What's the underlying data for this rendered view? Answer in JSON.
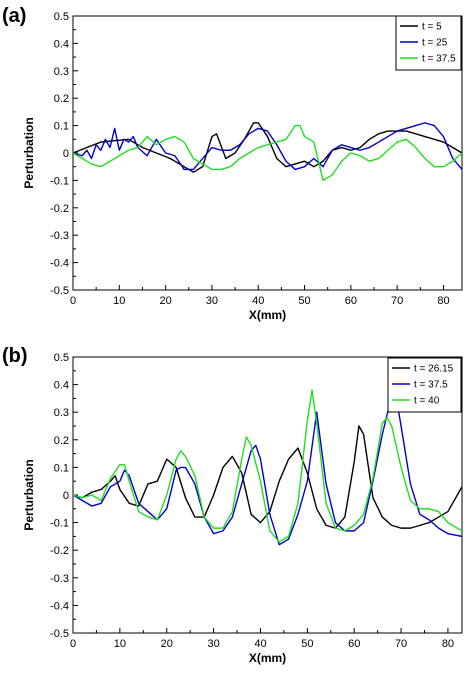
{
  "chart_data": [
    {
      "panel_label": "(a)",
      "type": "line",
      "xlabel": "X(mm)",
      "ylabel": "Perturbation",
      "xlim": [
        0,
        84
      ],
      "ylim": [
        -0.5,
        0.5
      ],
      "xticks": [
        0,
        10,
        20,
        30,
        40,
        50,
        60,
        70,
        80
      ],
      "yticks": [
        -0.5,
        -0.4,
        -0.3,
        -0.2,
        -0.1,
        0,
        0.1,
        0.2,
        0.3,
        0.4,
        0.5
      ],
      "ytick_labels": [
        "-0.5",
        "-0.4",
        "-0.3",
        "-0.2",
        "-0.1",
        "0",
        "0.1",
        "0.2",
        "0.3",
        "0.4",
        "0.5"
      ],
      "legend_position": "top-right",
      "series": [
        {
          "name": "t = 5",
          "color": "#000000",
          "x": [
            0,
            3,
            6,
            9,
            12,
            15,
            18,
            21,
            24,
            26,
            28,
            30,
            31,
            33,
            35,
            37,
            39,
            40,
            42,
            44,
            46,
            48,
            50,
            52,
            54,
            56,
            58,
            60,
            62,
            64,
            66,
            68,
            70,
            72,
            74,
            76,
            78,
            80,
            82,
            84
          ],
          "y": [
            0,
            0.02,
            0.04,
            0.045,
            0.05,
            0.02,
            0,
            -0.02,
            -0.05,
            -0.07,
            -0.05,
            0.06,
            0.07,
            -0.02,
            0,
            0.05,
            0.11,
            0.11,
            0.06,
            -0.02,
            -0.05,
            -0.04,
            -0.03,
            -0.05,
            -0.03,
            0.01,
            0.02,
            0.01,
            0.02,
            0.05,
            0.07,
            0.08,
            0.08,
            0.08,
            0.07,
            0.06,
            0.05,
            0.04,
            0.02,
            0
          ]
        },
        {
          "name": "t = 25",
          "color": "#0000cc",
          "x": [
            0,
            2,
            3,
            4,
            5,
            6,
            7,
            8,
            9,
            10,
            11,
            12,
            13,
            14,
            16,
            18,
            20,
            22,
            24,
            26,
            28,
            30,
            32,
            34,
            36,
            38,
            40,
            42,
            44,
            46,
            48,
            50,
            52,
            54,
            56,
            58,
            60,
            62,
            64,
            66,
            68,
            70,
            72,
            74,
            76,
            78,
            80,
            82,
            84
          ],
          "y": [
            0,
            -0.01,
            0.01,
            -0.02,
            0.03,
            0.01,
            0.05,
            0.02,
            0.09,
            0.01,
            0.05,
            0.04,
            0.06,
            0.02,
            -0.01,
            0.05,
            0,
            -0.01,
            -0.06,
            -0.06,
            -0.02,
            0.02,
            0.01,
            0.01,
            0.03,
            0.07,
            0.09,
            0.08,
            0.03,
            -0.03,
            -0.06,
            -0.05,
            -0.02,
            -0.05,
            0.01,
            0.03,
            0.02,
            0.01,
            0.02,
            0.04,
            0.06,
            0.08,
            0.09,
            0.1,
            0.11,
            0.1,
            0.06,
            -0.02,
            -0.06
          ]
        },
        {
          "name": "t = 37.5",
          "color": "#22dd22",
          "x": [
            0,
            2,
            4,
            6,
            8,
            10,
            12,
            14,
            16,
            18,
            20,
            22,
            24,
            26,
            28,
            30,
            32,
            34,
            36,
            38,
            40,
            42,
            44,
            46,
            48,
            49,
            50,
            52,
            54,
            56,
            58,
            60,
            62,
            64,
            66,
            68,
            70,
            72,
            74,
            76,
            78,
            80,
            82,
            84
          ],
          "y": [
            0,
            -0.02,
            -0.04,
            -0.05,
            -0.03,
            -0.01,
            0.01,
            0.02,
            0.06,
            0.03,
            0.05,
            0.06,
            0.04,
            -0.02,
            -0.04,
            -0.06,
            -0.06,
            -0.05,
            -0.02,
            0,
            0.02,
            0.03,
            0.04,
            0.05,
            0.1,
            0.1,
            0.06,
            0.04,
            -0.1,
            -0.08,
            -0.03,
            0,
            -0.01,
            -0.03,
            -0.02,
            0.01,
            0.04,
            0.05,
            0.02,
            -0.02,
            -0.05,
            -0.05,
            -0.03,
            0
          ]
        }
      ]
    },
    {
      "panel_label": "(b)",
      "type": "line",
      "xlabel": "X(mm)",
      "ylabel": "Perturbation",
      "xlim": [
        0,
        83
      ],
      "ylim": [
        -0.5,
        0.5
      ],
      "xticks": [
        0,
        10,
        20,
        30,
        40,
        50,
        60,
        70,
        80
      ],
      "yticks": [
        -0.5,
        -0.4,
        -0.3,
        -0.2,
        -0.1,
        0,
        0.1,
        0.2,
        0.3,
        0.4,
        0.5
      ],
      "ytick_labels": [
        "-0.5",
        "-0.4",
        "-0.3",
        "-0.2",
        "-0.1",
        "0",
        "0.1",
        "0.2",
        "0.3",
        "0.4",
        "0.5"
      ],
      "legend_position": "top-right",
      "series": [
        {
          "name": "t = 26.15",
          "color": "#000000",
          "x": [
            0,
            2,
            4,
            6,
            8,
            9,
            10,
            12,
            14,
            16,
            18,
            20,
            22,
            24,
            26,
            28,
            30,
            32,
            34,
            36,
            38,
            40,
            42,
            44,
            46,
            48,
            50,
            52,
            54,
            56,
            58,
            60,
            61,
            62,
            64,
            66,
            68,
            70,
            72,
            74,
            76,
            78,
            80,
            83
          ],
          "y": [
            0,
            -0.01,
            0.01,
            0.02,
            0.05,
            0.07,
            0.02,
            -0.03,
            -0.04,
            0.04,
            0.05,
            0.13,
            0.1,
            -0.01,
            -0.08,
            -0.08,
            0,
            0.1,
            0.14,
            0.08,
            -0.07,
            -0.1,
            -0.06,
            0.05,
            0.13,
            0.17,
            0.08,
            -0.05,
            -0.11,
            -0.12,
            -0.08,
            0.12,
            0.25,
            0.22,
            -0.01,
            -0.08,
            -0.11,
            -0.12,
            -0.12,
            -0.11,
            -0.1,
            -0.08,
            -0.06,
            0.03
          ]
        },
        {
          "name": "t = 37.5",
          "color": "#0000cc",
          "x": [
            0,
            2,
            4,
            6,
            8,
            10,
            11,
            12,
            14,
            16,
            18,
            20,
            22,
            23,
            24,
            26,
            28,
            30,
            32,
            34,
            36,
            38,
            39,
            40,
            42,
            44,
            46,
            48,
            50,
            52,
            54,
            56,
            58,
            60,
            62,
            64,
            66,
            68,
            69,
            70,
            72,
            74,
            76,
            78,
            80,
            83
          ],
          "y": [
            0,
            -0.02,
            -0.04,
            -0.03,
            0.03,
            0.05,
            0.09,
            0.07,
            -0.03,
            -0.06,
            -0.09,
            -0.05,
            0.09,
            0.1,
            0.1,
            0.04,
            -0.08,
            -0.14,
            -0.13,
            -0.08,
            0.04,
            0.16,
            0.18,
            0.13,
            -0.07,
            -0.18,
            -0.16,
            -0.07,
            0.05,
            0.3,
            0.04,
            -0.1,
            -0.13,
            -0.13,
            -0.1,
            0.05,
            0.22,
            0.36,
            0.35,
            0.25,
            0.04,
            -0.07,
            -0.09,
            -0.12,
            -0.14,
            -0.15
          ]
        },
        {
          "name": "t = 40",
          "color": "#22dd22",
          "x": [
            0,
            2,
            4,
            6,
            8,
            10,
            11,
            12,
            14,
            16,
            18,
            20,
            22,
            23,
            24,
            26,
            28,
            30,
            32,
            34,
            36,
            37,
            38,
            40,
            42,
            44,
            46,
            48,
            50,
            51,
            52,
            54,
            56,
            58,
            60,
            62,
            64,
            66,
            67,
            68,
            70,
            72,
            74,
            76,
            78,
            80,
            83
          ],
          "y": [
            0,
            -0.01,
            0,
            -0.02,
            0.06,
            0.11,
            0.11,
            0.05,
            -0.06,
            -0.08,
            -0.09,
            0,
            0.13,
            0.16,
            0.14,
            0.07,
            -0.08,
            -0.12,
            -0.12,
            -0.06,
            0.13,
            0.21,
            0.18,
            0.05,
            -0.13,
            -0.17,
            -0.15,
            -0.03,
            0.27,
            0.38,
            0.26,
            -0.03,
            -0.12,
            -0.13,
            -0.11,
            -0.07,
            0.06,
            0.26,
            0.28,
            0.25,
            0.1,
            -0.02,
            -0.05,
            -0.05,
            -0.06,
            -0.1,
            -0.13
          ]
        }
      ]
    }
  ]
}
